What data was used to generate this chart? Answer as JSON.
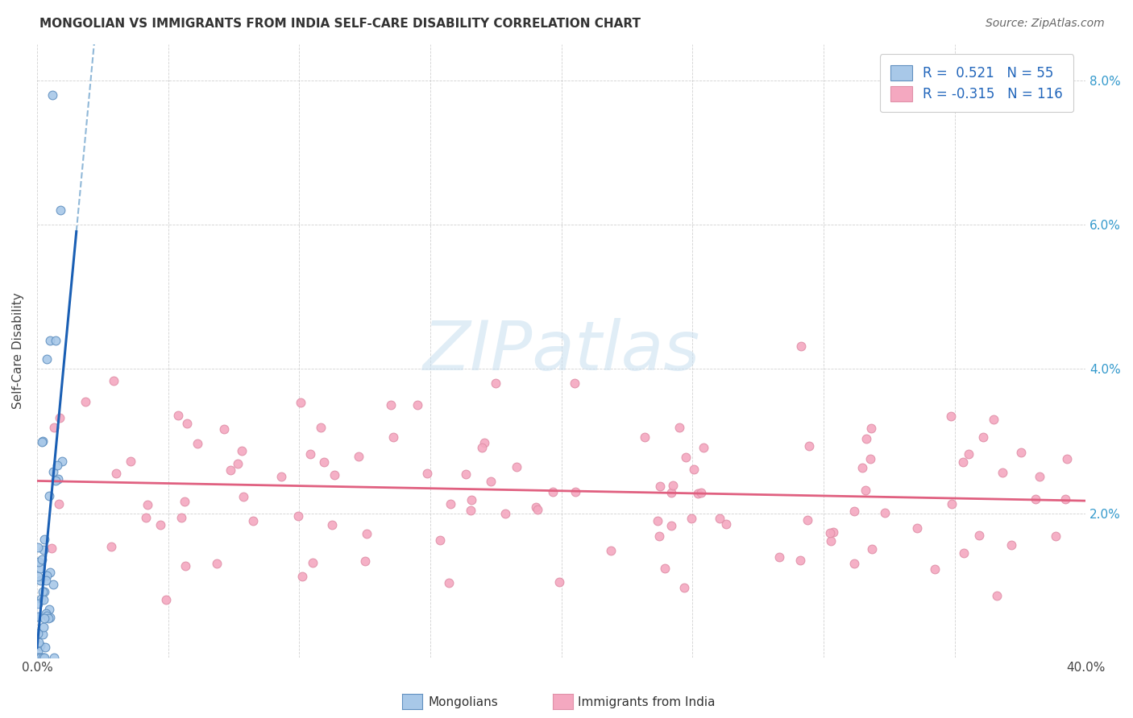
{
  "title": "MONGOLIAN VS IMMIGRANTS FROM INDIA SELF-CARE DISABILITY CORRELATION CHART",
  "source": "Source: ZipAtlas.com",
  "ylabel": "Self-Care Disability",
  "xlim": [
    0,
    0.4
  ],
  "ylim": [
    0,
    0.085
  ],
  "xtick_vals": [
    0.0,
    0.05,
    0.1,
    0.15,
    0.2,
    0.25,
    0.3,
    0.35,
    0.4
  ],
  "xtick_labels": [
    "0.0%",
    "",
    "",
    "",
    "",
    "",
    "",
    "",
    "40.0%"
  ],
  "ytick_vals": [
    0.0,
    0.02,
    0.04,
    0.06,
    0.08
  ],
  "ytick_labels_right": [
    "",
    "2.0%",
    "4.0%",
    "6.0%",
    "8.0%"
  ],
  "mongolian_color": "#a8c8e8",
  "india_color": "#f4a8c0",
  "trendline_mongolian_color": "#1a5fb4",
  "trendline_india_color": "#e06080",
  "dashed_color": "#90b8d8",
  "R_mongolian": 0.521,
  "N_mongolian": 55,
  "R_india": -0.315,
  "N_india": 116,
  "legend_label_mongolian": "Mongolians",
  "legend_label_india": "Immigrants from India",
  "watermark": "ZIPatlas",
  "background_color": "#ffffff",
  "mongolian_seed": 1234,
  "india_seed": 5678
}
